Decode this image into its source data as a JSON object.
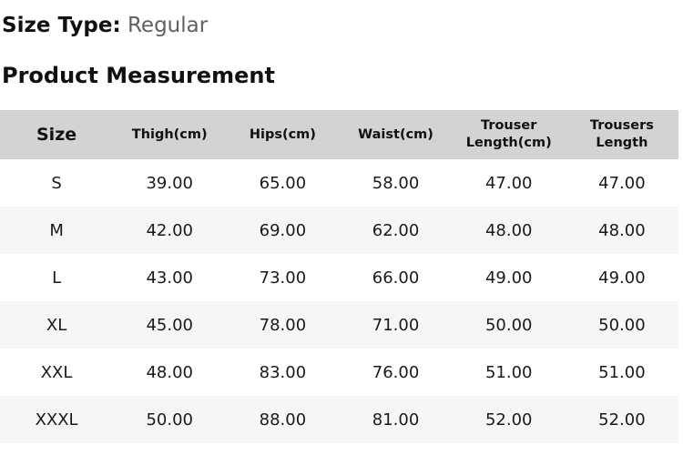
{
  "header": {
    "size_type_label": "Size Type:",
    "size_type_value": "Regular",
    "section_title": "Product Measurement"
  },
  "table": {
    "columns": [
      {
        "key": "size",
        "label": "Size"
      },
      {
        "key": "thigh_cm",
        "label": "Thigh(cm)"
      },
      {
        "key": "hips_cm",
        "label": "Hips(cm)"
      },
      {
        "key": "waist_cm",
        "label": "Waist(cm)"
      },
      {
        "key": "trouser_length_cm",
        "label": "Trouser Length(cm)"
      },
      {
        "key": "trousers_length",
        "label": "Trousers Length"
      }
    ],
    "rows": [
      {
        "cells": [
          "S",
          "39.00",
          "65.00",
          "58.00",
          "47.00",
          "47.00"
        ]
      },
      {
        "cells": [
          "M",
          "42.00",
          "69.00",
          "62.00",
          "48.00",
          "48.00"
        ]
      },
      {
        "cells": [
          "L",
          "43.00",
          "73.00",
          "66.00",
          "49.00",
          "49.00"
        ]
      },
      {
        "cells": [
          "XL",
          "45.00",
          "78.00",
          "71.00",
          "50.00",
          "50.00"
        ]
      },
      {
        "cells": [
          "XXL",
          "48.00",
          "83.00",
          "76.00",
          "51.00",
          "51.00"
        ]
      },
      {
        "cells": [
          "XXXL",
          "50.00",
          "88.00",
          "81.00",
          "52.00",
          "52.00"
        ]
      }
    ]
  },
  "colors": {
    "table_header_bg": "#d3d3d3",
    "row_alt_bg": "#f6f6f6",
    "text": "#1a1a1a",
    "muted_text": "#5f5f5f"
  }
}
